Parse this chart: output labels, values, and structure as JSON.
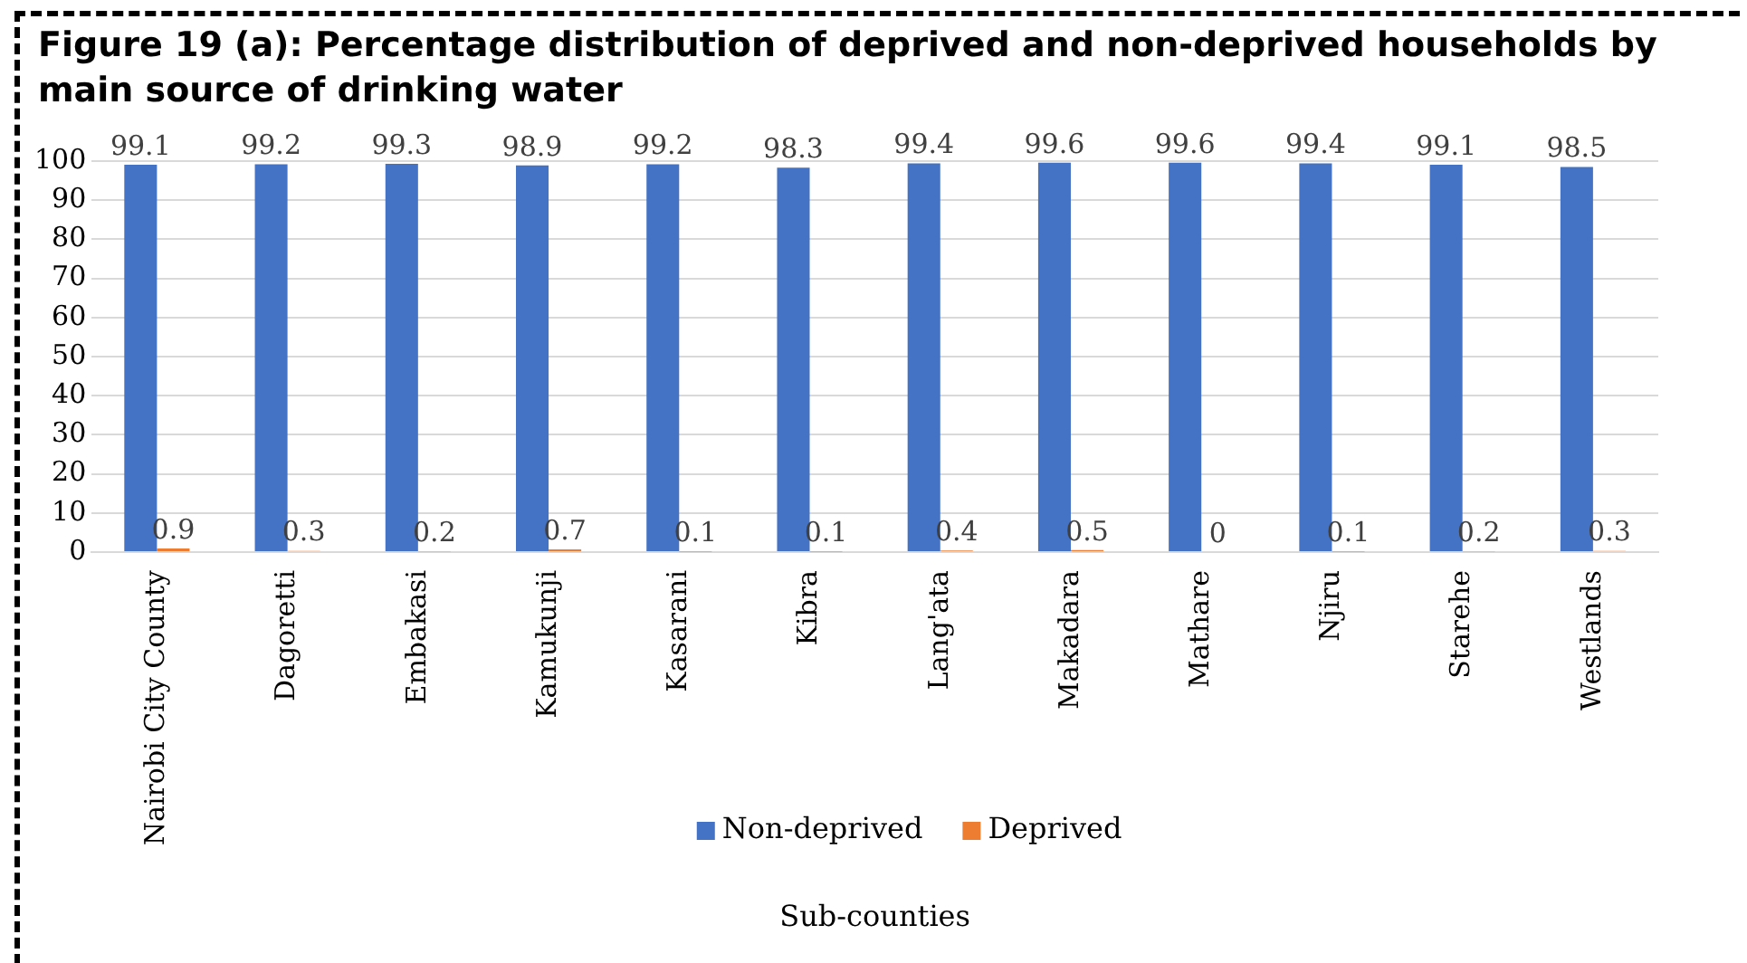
{
  "chart_data": {
    "type": "bar",
    "title": "Figure 19 (a): Percentage distribution of deprived and non-deprived households by main source of drinking water",
    "xlabel": "Sub-counties",
    "categories": [
      "Nairobi City County",
      "Dagoretti",
      "Embakasi",
      "Kamukunji",
      "Kasarani",
      "Kibra",
      "Lang'ata",
      "Makadara",
      "Mathare",
      "Njiru",
      "Starehe",
      "Westlands"
    ],
    "series": [
      {
        "name": "Non-deprived",
        "color": "#4472c4",
        "values": [
          99.1,
          99.2,
          99.3,
          98.9,
          99.2,
          98.3,
          99.4,
          99.6,
          99.6,
          99.4,
          99.1,
          98.5
        ]
      },
      {
        "name": "Deprived",
        "color": "#ed7d31",
        "values": [
          0.9,
          0.3,
          0.2,
          0.7,
          0.1,
          0.1,
          0.4,
          0.5,
          0,
          0.1,
          0.2,
          0.3
        ]
      }
    ],
    "ylim": [
      0,
      100
    ],
    "yticks": [
      0,
      10,
      20,
      30,
      40,
      50,
      60,
      70,
      80,
      90,
      100
    ],
    "grid": "y",
    "legend": "bottom",
    "data_labels": true
  }
}
